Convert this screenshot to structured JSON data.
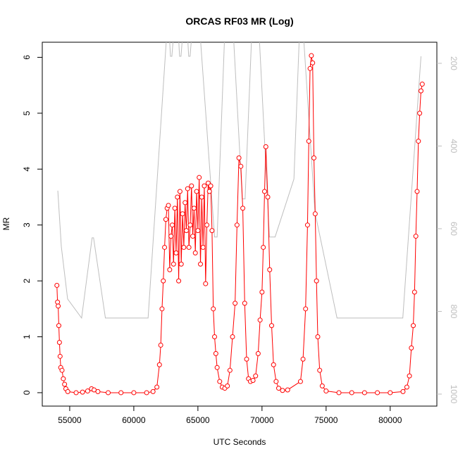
{
  "chart_data": {
    "type": "line",
    "title": "ORCAS RF03 MR (Log)",
    "xlabel": "UTC Seconds",
    "ylabel": "MR",
    "xlim": [
      52860,
      83640
    ],
    "xticks": [
      55000,
      60000,
      65000,
      70000,
      75000,
      80000
    ],
    "ylim": [
      -0.24,
      6.27
    ],
    "yticks": [
      0,
      1,
      2,
      3,
      4,
      5,
      6
    ],
    "y2lim": [
      1029,
      149
    ],
    "y2ticks": [
      200,
      400,
      600,
      800,
      1000
    ],
    "series": [
      {
        "color": "#bebebe",
        "axis": "y2",
        "x": [
          54072,
          54345,
          54836,
          55928,
          56747,
          56860,
          57784,
          61114,
          62587,
          62750,
          62860,
          62970,
          63130,
          63460,
          63570,
          63680,
          63840,
          64170,
          64280,
          64390,
          64550,
          65150,
          66300,
          66500,
          67100,
          67750,
          68460,
          68680,
          69210,
          69760,
          70580,
          71020,
          72490,
          72930,
          73210,
          74130,
          75852,
          80983,
          82402
        ],
        "values": [
          508,
          643,
          770,
          816,
          622,
          622,
          816,
          816,
          120,
          120,
          183,
          183,
          120,
          120,
          183,
          183,
          120,
          120,
          183,
          183,
          120,
          120,
          620,
          620,
          120,
          120,
          528,
          528,
          120,
          120,
          620,
          620,
          480,
          120,
          120,
          560,
          816,
          816,
          183
        ]
      },
      {
        "color": "#ff0000",
        "x": [
          54000,
          54050,
          54100,
          54150,
          54200,
          54250,
          54300,
          54400,
          54500,
          54600,
          54700,
          54850,
          55500,
          56000,
          56400,
          56700,
          56900,
          57200,
          58000,
          59000,
          60000,
          61000,
          61500,
          61800,
          62000,
          62100,
          62200,
          62300,
          62400,
          62500,
          62600,
          62700,
          62800,
          62900,
          63000,
          63100,
          63200,
          63300,
          63400,
          63500,
          63600,
          63700,
          63800,
          63900,
          64000,
          64100,
          64200,
          64300,
          64400,
          64500,
          64600,
          64700,
          64800,
          64900,
          65000,
          65100,
          65200,
          65300,
          65400,
          65500,
          65600,
          65700,
          65800,
          65900,
          66000,
          66100,
          66200,
          66300,
          66400,
          66500,
          66700,
          66900,
          67100,
          67300,
          67500,
          67700,
          67900,
          68050,
          68200,
          68350,
          68500,
          68650,
          68800,
          68950,
          69100,
          69300,
          69500,
          69700,
          69850,
          70000,
          70100,
          70200,
          70300,
          70450,
          70600,
          70750,
          70900,
          71100,
          71300,
          71600,
          72000,
          73000,
          73200,
          73400,
          73550,
          73650,
          73750,
          73850,
          73950,
          74050,
          74150,
          74250,
          74350,
          74500,
          74700,
          75000,
          76000,
          77000,
          78000,
          79000,
          80000,
          81000,
          81300,
          81500,
          81650,
          81800,
          81900,
          82000,
          82100,
          82200,
          82300,
          82400,
          82500
        ],
        "values": [
          1.92,
          1.62,
          1.55,
          1.2,
          0.9,
          0.65,
          0.45,
          0.4,
          0.25,
          0.15,
          0.07,
          0.02,
          0.0,
          0.01,
          0.03,
          0.07,
          0.05,
          0.02,
          0.0,
          0.0,
          0.0,
          0.0,
          0.02,
          0.1,
          0.5,
          0.85,
          1.5,
          2.0,
          2.6,
          3.1,
          3.3,
          3.35,
          2.2,
          2.8,
          3.0,
          2.3,
          3.3,
          2.5,
          3.5,
          2.0,
          3.6,
          2.3,
          3.2,
          2.6,
          3.4,
          2.9,
          3.65,
          2.6,
          3.0,
          3.7,
          2.8,
          3.3,
          2.5,
          3.6,
          2.9,
          3.85,
          2.3,
          3.5,
          2.6,
          3.7,
          1.95,
          3.0,
          3.75,
          3.6,
          3.7,
          2.9,
          1.5,
          1.0,
          0.7,
          0.45,
          0.2,
          0.1,
          0.08,
          0.12,
          0.4,
          1.0,
          1.6,
          3.0,
          4.2,
          4.05,
          3.3,
          1.6,
          0.6,
          0.25,
          0.2,
          0.22,
          0.3,
          0.7,
          1.3,
          1.8,
          2.6,
          3.6,
          4.4,
          3.5,
          2.2,
          1.2,
          0.5,
          0.2,
          0.08,
          0.04,
          0.05,
          0.2,
          0.6,
          1.5,
          3.0,
          4.5,
          5.8,
          6.03,
          5.9,
          4.2,
          3.2,
          2.0,
          1.0,
          0.4,
          0.12,
          0.03,
          0.0,
          0.0,
          0.0,
          0.0,
          0.0,
          0.02,
          0.1,
          0.3,
          0.8,
          1.2,
          1.8,
          2.8,
          3.6,
          4.5,
          5.0,
          5.4,
          5.52
        ]
      }
    ]
  }
}
